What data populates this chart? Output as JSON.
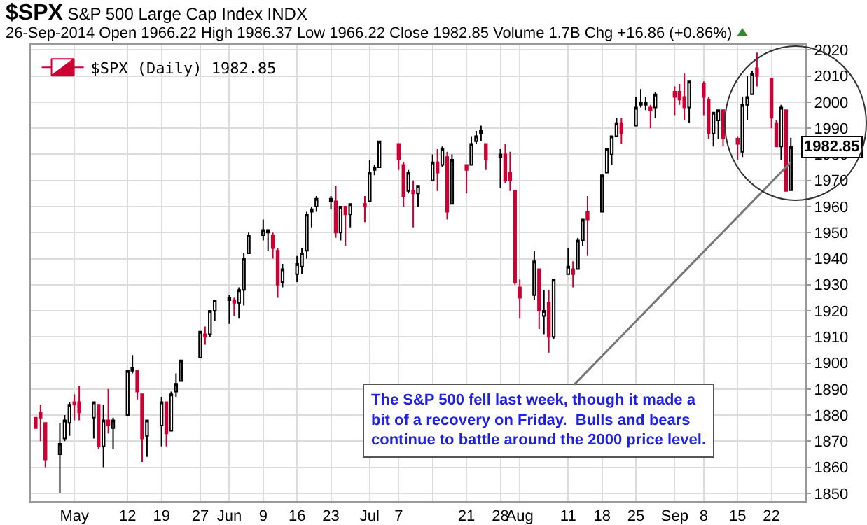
{
  "chart_data": {
    "type": "candlestick",
    "title": "$SPX S&P 500 Large Cap Index INDX",
    "subtitle": "26-Sep-2014 Open 1966.22 High 1986.37 Low 1966.22 Close 1982.85 Volume 1.7B Chg +16.86 (+0.86%)",
    "x": [
      "2014-04-23",
      "2014-04-24",
      "2014-04-25",
      "2014-04-28",
      "2014-04-29",
      "2014-04-30",
      "2014-05-01",
      "2014-05-02",
      "2014-05-05",
      "2014-05-06",
      "2014-05-07",
      "2014-05-08",
      "2014-05-09",
      "2014-05-12",
      "2014-05-13",
      "2014-05-14",
      "2014-05-15",
      "2014-05-16",
      "2014-05-19",
      "2014-05-20",
      "2014-05-21",
      "2014-05-22",
      "2014-05-23",
      "2014-05-27",
      "2014-05-28",
      "2014-05-29",
      "2014-05-30",
      "2014-06-02",
      "2014-06-03",
      "2014-06-04",
      "2014-06-05",
      "2014-06-06",
      "2014-06-09",
      "2014-06-10",
      "2014-06-11",
      "2014-06-12",
      "2014-06-13",
      "2014-06-16",
      "2014-06-17",
      "2014-06-18",
      "2014-06-19",
      "2014-06-20",
      "2014-06-23",
      "2014-06-24",
      "2014-06-25",
      "2014-06-26",
      "2014-06-27",
      "2014-06-30",
      "2014-07-01",
      "2014-07-02",
      "2014-07-03",
      "2014-07-07",
      "2014-07-08",
      "2014-07-09",
      "2014-07-10",
      "2014-07-11",
      "2014-07-14",
      "2014-07-15",
      "2014-07-16",
      "2014-07-17",
      "2014-07-18",
      "2014-07-21",
      "2014-07-22",
      "2014-07-23",
      "2014-07-24",
      "2014-07-25",
      "2014-07-28",
      "2014-07-29",
      "2014-07-30",
      "2014-07-31",
      "2014-08-01",
      "2014-08-04",
      "2014-08-05",
      "2014-08-06",
      "2014-08-07",
      "2014-08-08",
      "2014-08-11",
      "2014-08-12",
      "2014-08-13",
      "2014-08-14",
      "2014-08-15",
      "2014-08-18",
      "2014-08-19",
      "2014-08-20",
      "2014-08-21",
      "2014-08-22",
      "2014-08-25",
      "2014-08-26",
      "2014-08-27",
      "2014-08-28",
      "2014-08-29",
      "2014-09-02",
      "2014-09-03",
      "2014-09-04",
      "2014-09-05",
      "2014-09-08",
      "2014-09-09",
      "2014-09-10",
      "2014-09-11",
      "2014-09-12",
      "2014-09-15",
      "2014-09-16",
      "2014-09-17",
      "2014-09-18",
      "2014-09-19",
      "2014-09-22",
      "2014-09-23",
      "2014-09-24",
      "2014-09-25",
      "2014-09-26"
    ],
    "series": [
      {
        "name": "$SPX (Daily) 1982.85",
        "colors": [
          "#cc0033",
          "#cc0033",
          "#cc0033",
          "#000000",
          "#000000",
          "#000000",
          "#cc0033",
          "#cc0033",
          "#000000",
          "#cc0033",
          "#000000",
          "#cc0033",
          "#000000",
          "#000000",
          "#000000",
          "#cc0033",
          "#cc0033",
          "#000000",
          "#000000",
          "#cc0033",
          "#000000",
          "#000000",
          "#000000",
          "#000000",
          "#cc0033",
          "#000000",
          "#000000",
          "#000000",
          "#cc0033",
          "#000000",
          "#000000",
          "#000000",
          "#000000",
          "#000000",
          "#cc0033",
          "#cc0033",
          "#000000",
          "#000000",
          "#000000",
          "#000000",
          "#000000",
          "#000000",
          "#000000",
          "#cc0033",
          "#000000",
          "#cc0033",
          "#000000",
          "#cc0033",
          "#000000",
          "#000000",
          "#000000",
          "#cc0033",
          "#cc0033",
          "#000000",
          "#cc0033",
          "#000000",
          "#000000",
          "#cc0033",
          "#000000",
          "#cc0033",
          "#000000",
          "#cc0033",
          "#000000",
          "#000000",
          "#000000",
          "#cc0033",
          "#000000",
          "#cc0033",
          "#cc0033",
          "#cc0033",
          "#cc0033",
          "#000000",
          "#cc0033",
          "#000000",
          "#cc0033",
          "#000000",
          "#000000",
          "#cc0033",
          "#000000",
          "#000000",
          "#cc0033",
          "#000000",
          "#000000",
          "#000000",
          "#000000",
          "#cc0033",
          "#000000",
          "#000000",
          "#000000",
          "#cc0033",
          "#000000",
          "#cc0033",
          "#cc0033",
          "#cc0033",
          "#000000",
          "#cc0033",
          "#cc0033",
          "#000000",
          "#000000",
          "#cc0033",
          "#cc0033",
          "#000000",
          "#000000",
          "#000000",
          "#cc0033",
          "#cc0033",
          "#cc0033",
          "#000000",
          "#cc0033",
          "#000000"
        ],
        "ohlc": [
          [
            1879,
            1879,
            1875,
            1875
          ],
          [
            1881,
            1884,
            1870,
            1879
          ],
          [
            1877,
            1877,
            1860,
            1863
          ],
          [
            1865,
            1877,
            1850,
            1869
          ],
          [
            1871,
            1880,
            1870,
            1878
          ],
          [
            1877,
            1885,
            1872,
            1884
          ],
          [
            1885,
            1888,
            1878,
            1884
          ],
          [
            1885,
            1891,
            1878,
            1881
          ],
          [
            1879,
            1885,
            1871,
            1885
          ],
          [
            1884,
            1884,
            1867,
            1868
          ],
          [
            1868,
            1884,
            1860,
            1878
          ],
          [
            1878,
            1890,
            1873,
            1876
          ],
          [
            1875,
            1879,
            1867,
            1878
          ],
          [
            1880,
            1897,
            1880,
            1897
          ],
          [
            1897,
            1903,
            1896,
            1898
          ],
          [
            1897,
            1897,
            1886,
            1889
          ],
          [
            1888,
            1888,
            1862,
            1871
          ],
          [
            1872,
            1878,
            1864,
            1878
          ],
          [
            1876,
            1887,
            1868,
            1885
          ],
          [
            1885,
            1885,
            1868,
            1873
          ],
          [
            1874,
            1889,
            1874,
            1888
          ],
          [
            1889,
            1896,
            1887,
            1892
          ],
          [
            1893,
            1901,
            1893,
            1901
          ],
          [
            1902,
            1912,
            1902,
            1912
          ],
          [
            1911,
            1914,
            1907,
            1910
          ],
          [
            1911,
            1920,
            1910,
            1920
          ],
          [
            1920,
            1924,
            1916,
            1924
          ],
          [
            1924,
            1926,
            1915,
            1925
          ],
          [
            1924,
            1925,
            1918,
            1923
          ],
          [
            1923,
            1929,
            1917,
            1928
          ],
          [
            1928,
            1942,
            1922,
            1940
          ],
          [
            1942,
            1950,
            1942,
            1949
          ],
          [
            1949,
            1955,
            1947,
            1951
          ],
          [
            1950,
            1951,
            1943,
            1951
          ],
          [
            1949,
            1950,
            1940,
            1944
          ],
          [
            1943,
            1944,
            1925,
            1930
          ],
          [
            1931,
            1938,
            1929,
            1936
          ],
          [
            1934,
            1941,
            1931,
            1938
          ],
          [
            1937,
            1944,
            1934,
            1942
          ],
          [
            1943,
            1958,
            1940,
            1957
          ],
          [
            1958,
            1960,
            1952,
            1959
          ],
          [
            1960,
            1964,
            1958,
            1963
          ],
          [
            1962,
            1964,
            1959,
            1963
          ],
          [
            1962,
            1968,
            1948,
            1950
          ],
          [
            1950,
            1960,
            1947,
            1960
          ],
          [
            1960,
            1960,
            1945,
            1957
          ],
          [
            1957,
            1961,
            1952,
            1961
          ],
          [
            1961,
            1964,
            1954,
            1960
          ],
          [
            1962,
            1978,
            1962,
            1973
          ],
          [
            1974,
            1976,
            1972,
            1975
          ],
          [
            1975,
            1985,
            1975,
            1985
          ],
          [
            1984,
            1984,
            1974,
            1978
          ],
          [
            1976,
            1977,
            1960,
            1964
          ],
          [
            1966,
            1974,
            1965,
            1973
          ],
          [
            1966,
            1970,
            1952,
            1965
          ],
          [
            1965,
            1968,
            1960,
            1968
          ],
          [
            1970,
            1980,
            1970,
            1977
          ],
          [
            1977,
            1982,
            1966,
            1973
          ],
          [
            1976,
            1983,
            1975,
            1982
          ],
          [
            1979,
            1981,
            1955,
            1958
          ],
          [
            1961,
            1980,
            1961,
            1978
          ],
          [
            1976,
            1976,
            1965,
            1974
          ],
          [
            1976,
            1987,
            1976,
            1984
          ],
          [
            1985,
            1989,
            1984,
            1987
          ],
          [
            1988,
            1991,
            1985,
            1989
          ],
          [
            1984,
            1984,
            1974,
            1978
          ],
          [
            1979,
            1982,
            1967,
            1980
          ],
          [
            1980,
            1984,
            1969,
            1970
          ],
          [
            1973,
            1981,
            1966,
            1970
          ],
          [
            1966,
            1966,
            1930,
            1931
          ],
          [
            1929,
            1932,
            1917,
            1925
          ],
          [
            1926,
            1943,
            1924,
            1939
          ],
          [
            1936,
            1936,
            1913,
            1920
          ],
          [
            1918,
            1928,
            1911,
            1920
          ],
          [
            1923,
            1928,
            1904,
            1910
          ],
          [
            1910,
            1932,
            1909,
            1932
          ],
          [
            1934,
            1944,
            1934,
            1937
          ],
          [
            1936,
            1939,
            1929,
            1934
          ],
          [
            1936,
            1948,
            1936,
            1947
          ],
          [
            1947,
            1955,
            1945,
            1955
          ],
          [
            1958,
            1964,
            1941,
            1955
          ],
          [
            1958,
            1972,
            1958,
            1972
          ],
          [
            1973,
            1982,
            1973,
            1982
          ],
          [
            1980,
            1987,
            1976,
            1987
          ],
          [
            1987,
            1994,
            1987,
            1992
          ],
          [
            1992,
            1994,
            1984,
            1988
          ],
          [
            1991,
            2002,
            1991,
            1998
          ],
          [
            1999,
            2005,
            1998,
            2000
          ],
          [
            1999,
            2002,
            1997,
            2000
          ],
          [
            1998,
            1999,
            1990,
            1997
          ],
          [
            1998,
            2004,
            1994,
            2003
          ],
          [
            2004,
            2006,
            1995,
            2002
          ],
          [
            2004,
            2007,
            1999,
            2001
          ],
          [
            2002,
            2011,
            1993,
            1998
          ],
          [
            1998,
            2008,
            1992,
            2008
          ],
          [
            2007,
            2008,
            1995,
            2002
          ],
          [
            2001,
            2002,
            1986,
            1988
          ],
          [
            1988,
            1996,
            1983,
            1996
          ],
          [
            1993,
            1997,
            1986,
            1997
          ],
          [
            1997,
            1997,
            1983,
            1986
          ],
          [
            1986,
            1987,
            1978,
            1984
          ],
          [
            1981,
            2002,
            1979,
            1999
          ],
          [
            1999,
            2010,
            1993,
            2002
          ],
          [
            2003,
            2012,
            2003,
            2011
          ],
          [
            2013,
            2019,
            2006,
            2010
          ],
          [
            2009,
            2009,
            1990,
            1994
          ],
          [
            1992,
            1993,
            1983,
            1983
          ],
          [
            1983,
            1999,
            1978,
            1998
          ],
          [
            1997,
            1997,
            1966,
            1966
          ],
          [
            1966.22,
            1986.37,
            1966.22,
            1982.85
          ]
        ]
      }
    ],
    "xlim": [
      "2014-04-22",
      "2014-09-29"
    ],
    "xticks": [
      {
        "value": "2014-05-01",
        "label": "May"
      },
      {
        "value": "2014-05-12",
        "label": "12"
      },
      {
        "value": "2014-05-19",
        "label": "19"
      },
      {
        "value": "2014-05-27",
        "label": "27"
      },
      {
        "value": "2014-06-02",
        "label": "Jun"
      },
      {
        "value": "2014-06-09",
        "label": "9"
      },
      {
        "value": "2014-06-16",
        "label": "16"
      },
      {
        "value": "2014-06-23",
        "label": "23"
      },
      {
        "value": "2014-07-01",
        "label": "Jul"
      },
      {
        "value": "2014-07-07",
        "label": "7"
      },
      {
        "value": "2014-07-14",
        "label": null
      },
      {
        "value": "2014-07-21",
        "label": "21"
      },
      {
        "value": "2014-07-28",
        "label": "28"
      },
      {
        "value": "2014-08-01",
        "label": "Aug"
      },
      {
        "value": "2014-08-11",
        "label": "11"
      },
      {
        "value": "2014-08-18",
        "label": "18"
      },
      {
        "value": "2014-08-25",
        "label": "25"
      },
      {
        "value": "2014-09-02",
        "label": "Sep"
      },
      {
        "value": "2014-09-08",
        "label": "8"
      },
      {
        "value": "2014-09-15",
        "label": "15"
      },
      {
        "value": "2014-09-22",
        "label": "22"
      }
    ],
    "ylim": [
      1847,
      2022
    ],
    "yticks": [
      1850,
      1860,
      1870,
      1880,
      1890,
      1900,
      1910,
      1920,
      1930,
      1940,
      1950,
      1960,
      1970,
      1980,
      1990,
      2000,
      2010,
      2020
    ],
    "grid": true,
    "legend": "top left",
    "annotations": [
      {
        "text": "The S&P 500 fell last week, though it made a\nbit of a recovery on Friday.  Bulls and bears\ncontinue to battle around the 2000 price level.",
        "x": "2014-09-26",
        "y": 1977
      },
      {
        "text": "1982.85",
        "x": "2014-09-26",
        "y": 1982.85
      }
    ]
  }
}
